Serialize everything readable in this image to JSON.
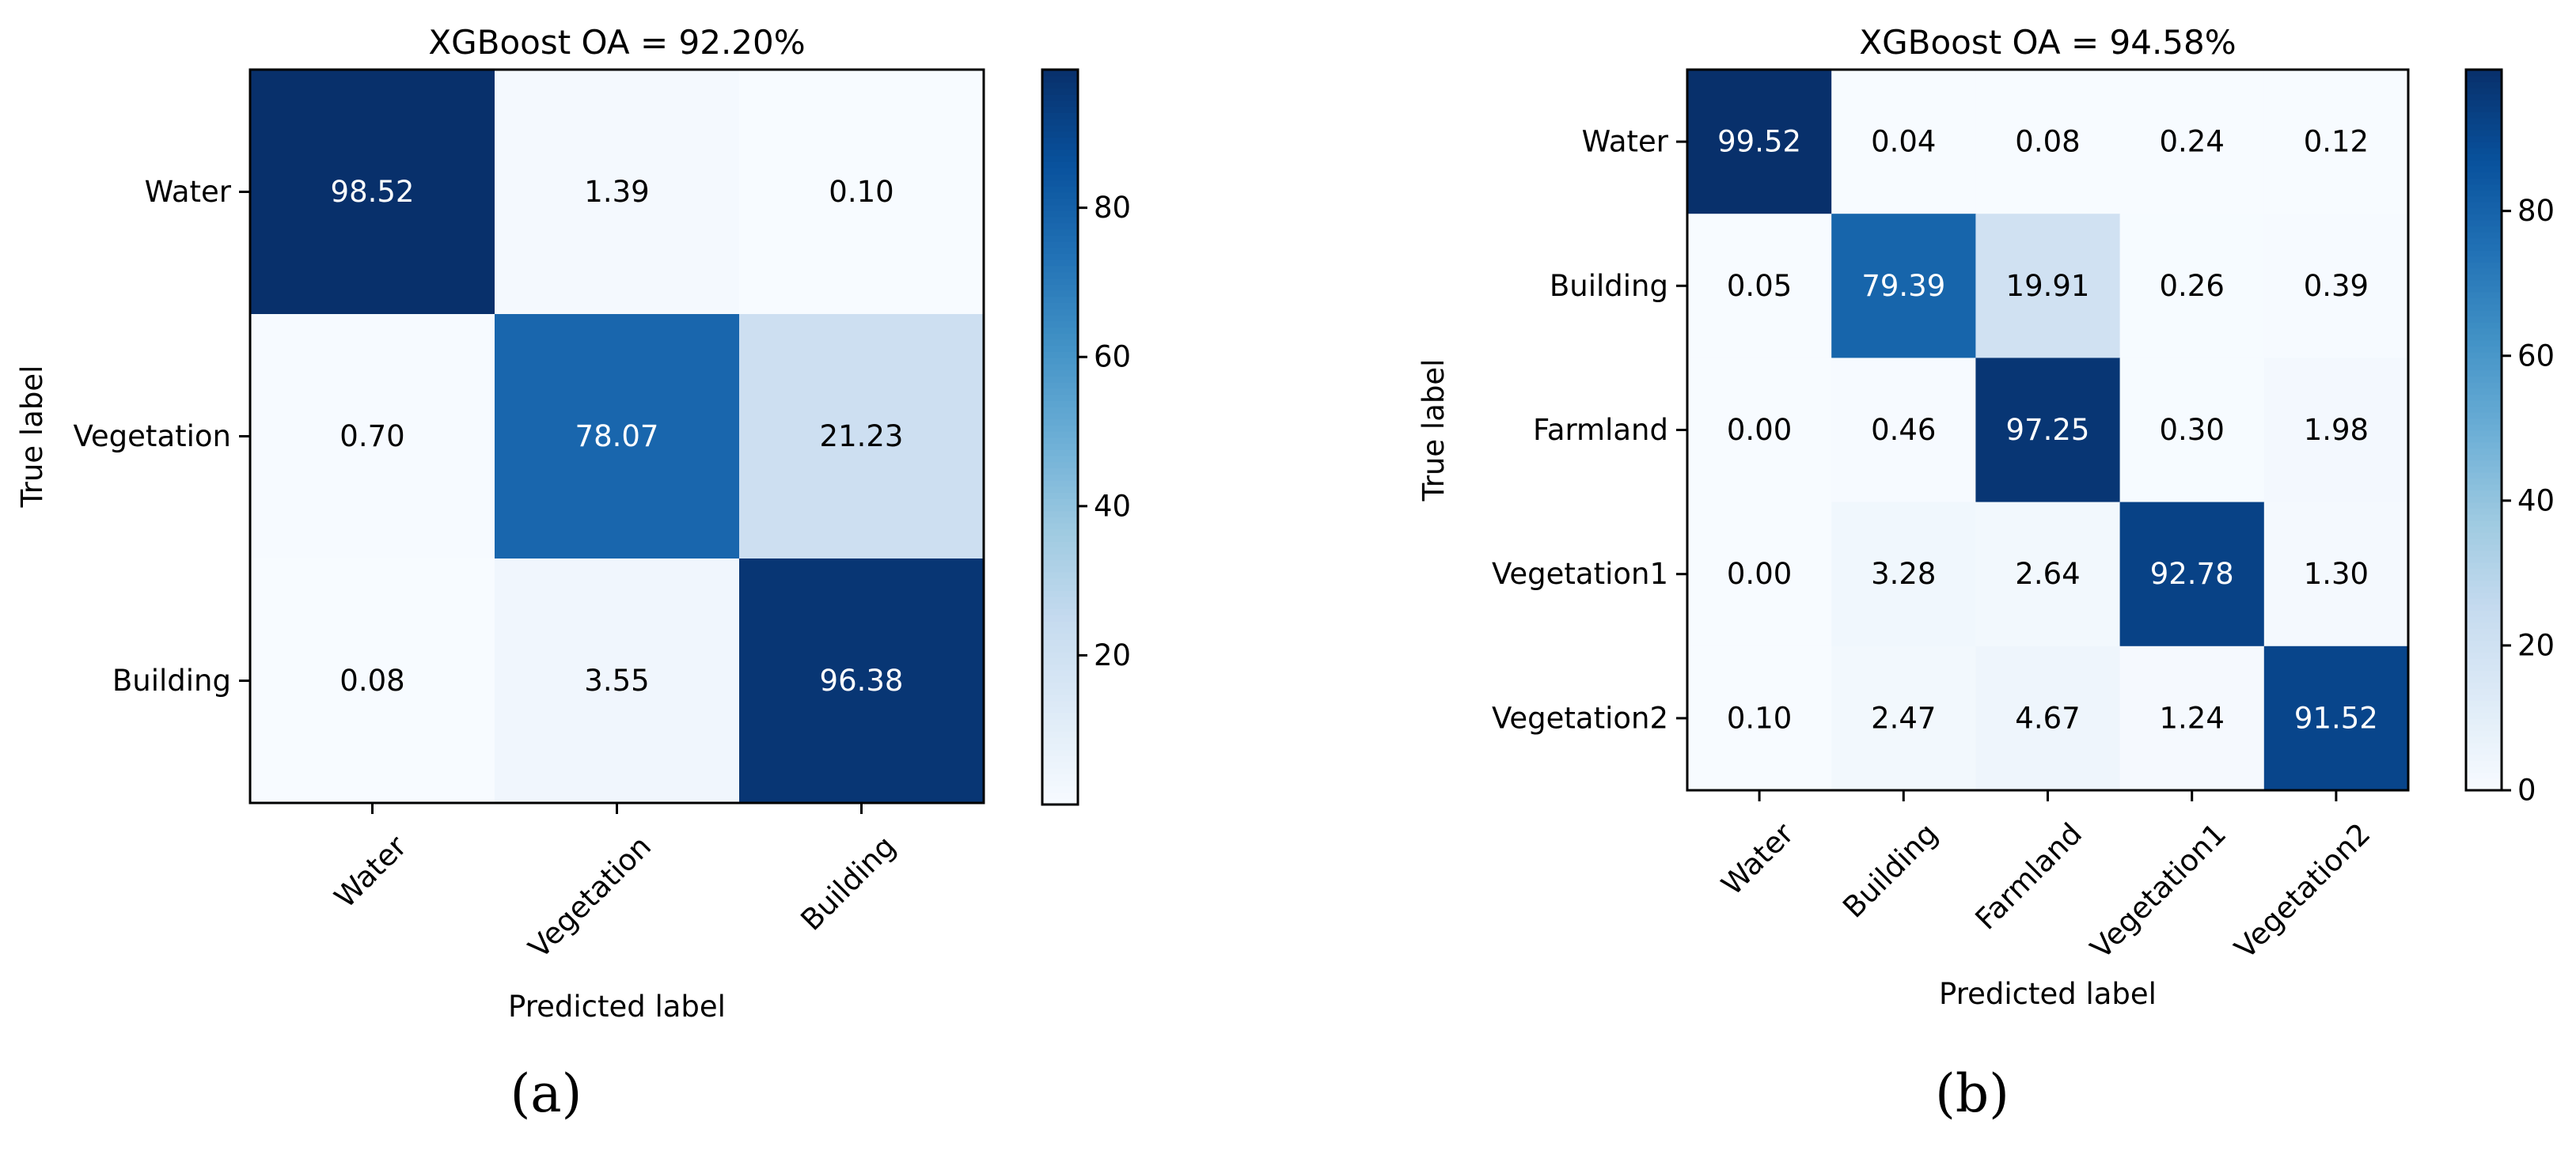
{
  "chart_data": [
    {
      "type": "heatmap",
      "title": "XGBoost OA = 92.20%",
      "xlabel": "Predicted label",
      "ylabel": "True label",
      "x_categories": [
        "Water",
        "Vegetation",
        "Building"
      ],
      "y_categories": [
        "Water",
        "Vegetation",
        "Building"
      ],
      "matrix": [
        [
          "98.52",
          "1.39",
          "0.10"
        ],
        [
          "0.70",
          "78.07",
          "21.23"
        ],
        [
          "0.08",
          "3.55",
          "96.38"
        ]
      ],
      "colorbar": {
        "ticks": [
          "20",
          "40",
          "60",
          "80"
        ],
        "range": [
          0,
          98.52
        ],
        "colormap": "Blues"
      },
      "caption": "(a)"
    },
    {
      "type": "heatmap",
      "title": "XGBoost OA = 94.58%",
      "xlabel": "Predicted label",
      "ylabel": "True label",
      "x_categories": [
        "Water",
        "Building",
        "Farmland",
        "Vegetation1",
        "Vegetation2"
      ],
      "y_categories": [
        "Water",
        "Building",
        "Farmland",
        "Vegetation1",
        "Vegetation2"
      ],
      "matrix": [
        [
          "99.52",
          "0.04",
          "0.08",
          "0.24",
          "0.12"
        ],
        [
          "0.05",
          "79.39",
          "19.91",
          "0.26",
          "0.39"
        ],
        [
          "0.00",
          "0.46",
          "97.25",
          "0.30",
          "1.98"
        ],
        [
          "0.00",
          "3.28",
          "2.64",
          "92.78",
          "1.30"
        ],
        [
          "0.10",
          "2.47",
          "4.67",
          "1.24",
          "91.52"
        ]
      ],
      "colorbar": {
        "ticks": [
          "0",
          "20",
          "40",
          "60",
          "80"
        ],
        "range": [
          0,
          99.52
        ],
        "colormap": "Blues"
      },
      "caption": "(b)"
    }
  ],
  "colors": {
    "blues_low": "#f7fbff",
    "blues_high": "#08306b",
    "text_dark": "#000000",
    "text_light": "#ffffff"
  }
}
